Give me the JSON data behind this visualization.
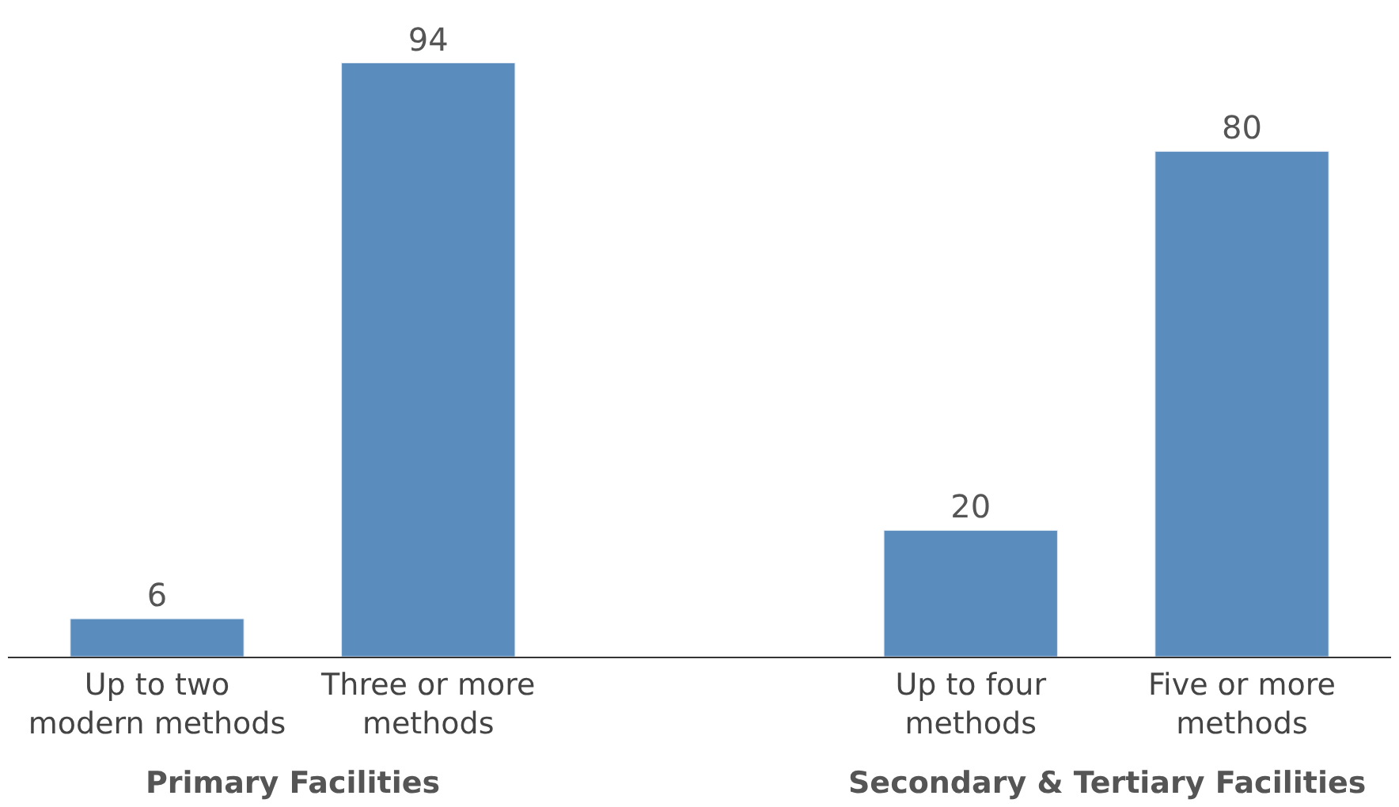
{
  "chart_data": {
    "type": "bar",
    "categories": [
      "Up to two modern methods",
      "Three or more methods",
      null,
      "Up to four methods",
      "Five or more methods"
    ],
    "values": [
      6,
      94,
      null,
      20,
      80
    ],
    "color": "#5a8dbd",
    "data_labels": true,
    "annotations": [
      "Primary Facilities",
      "Secondary & Tertiary Facilities"
    ]
  }
}
